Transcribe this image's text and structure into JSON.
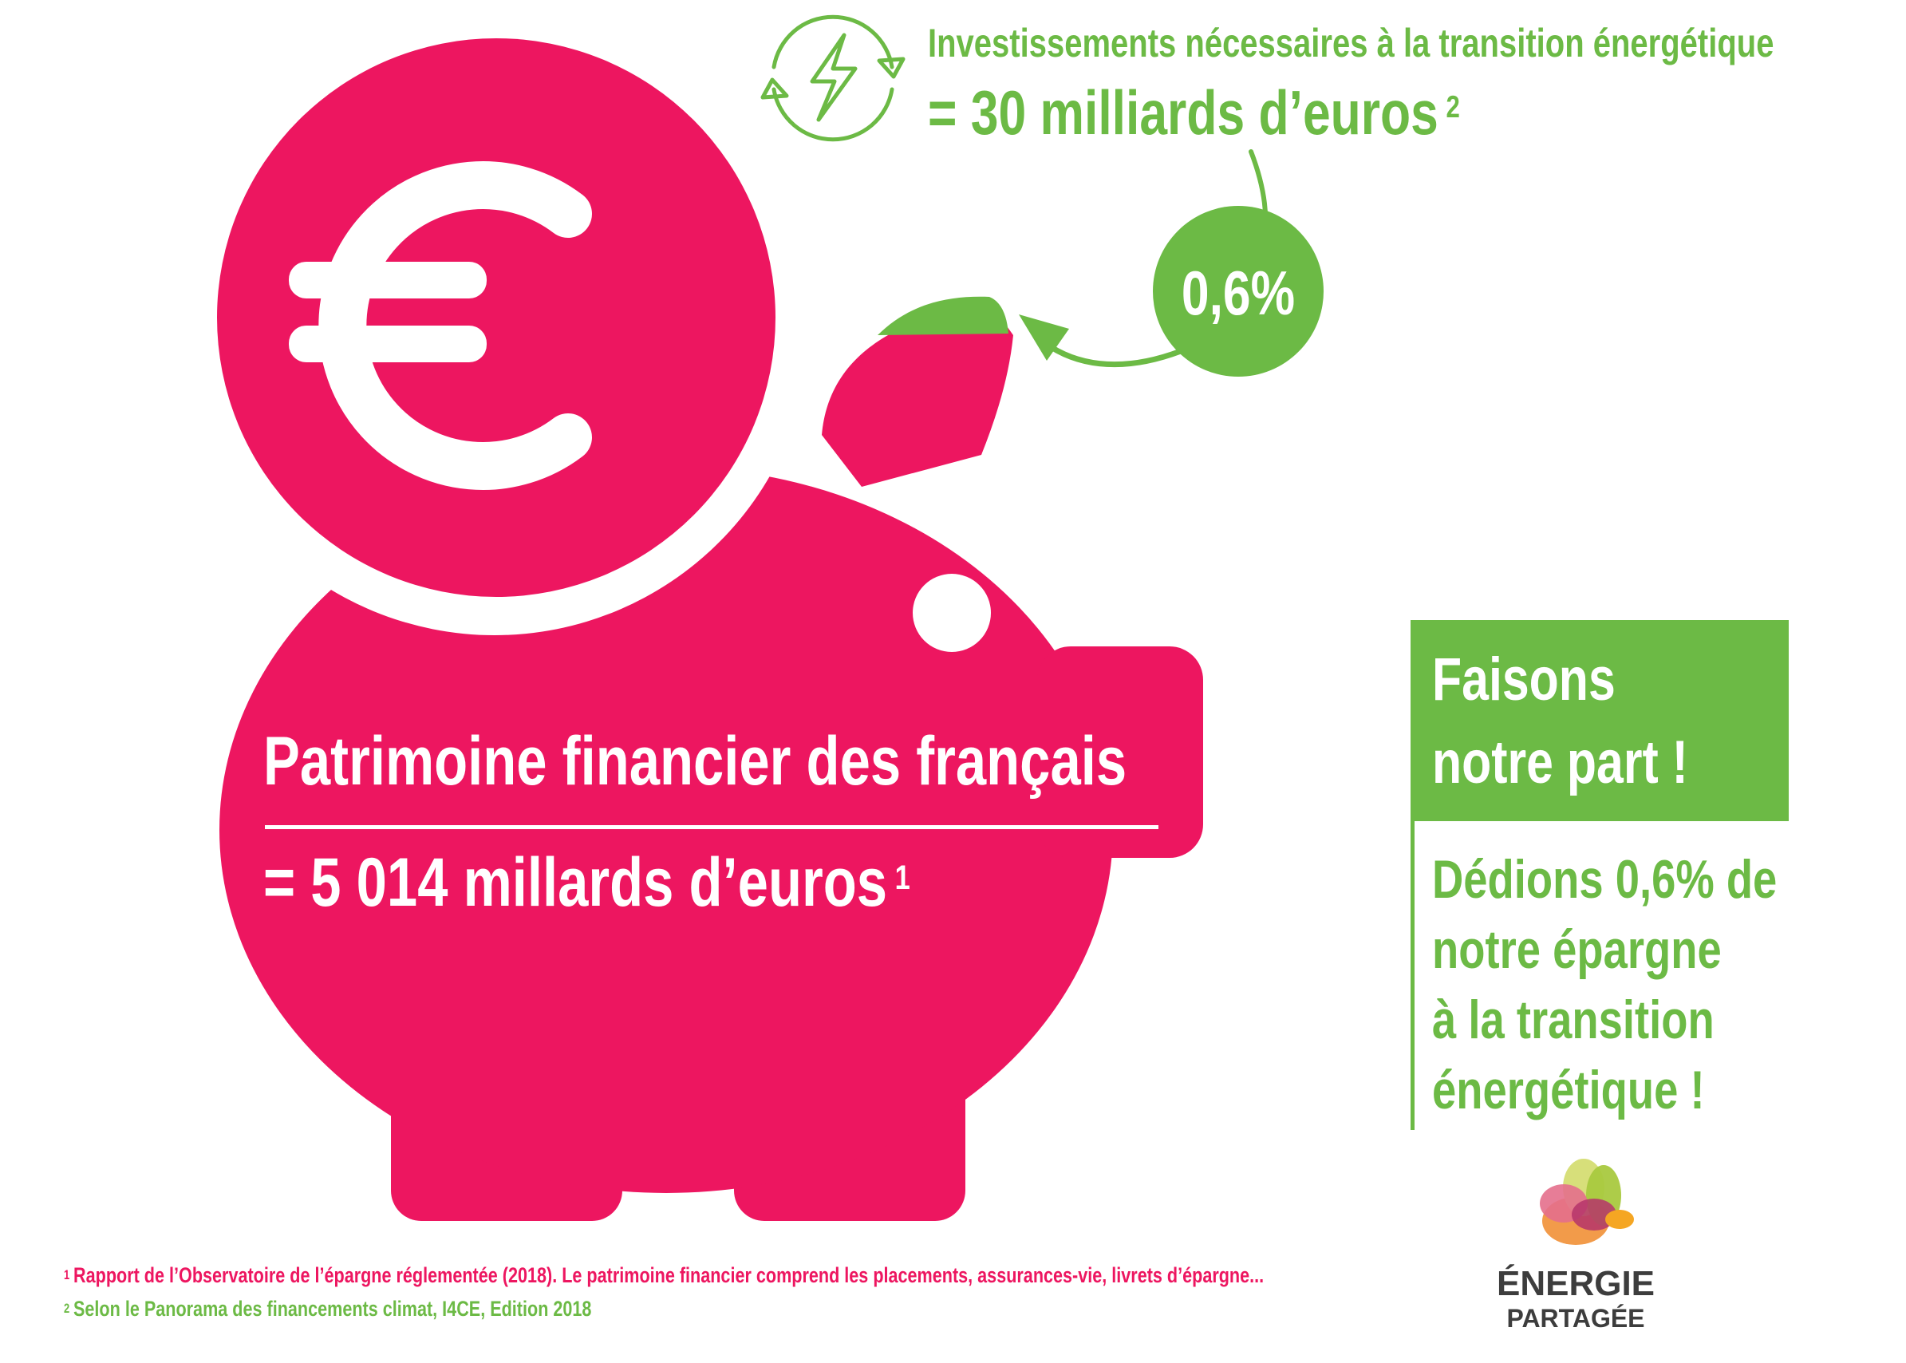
{
  "header": {
    "title": "Investissements nécessaires à la transition énergétique",
    "value": "= 30 milliards d’euros",
    "footnote_ref": "2",
    "icon": "energy-transition-icon"
  },
  "badge": {
    "percent": "0,6%"
  },
  "piggy_bank": {
    "icon": "euro-icon",
    "title": "Patrimoine financier des français",
    "value": "= 5 014 millards d’euros",
    "footnote_ref": "1"
  },
  "call_to_action": {
    "title": "Faisons\nnotre part !",
    "body": "Dédions 0,6% de\nnotre épargne\nà la transition\nénergétique !"
  },
  "footnotes": [
    {
      "ref": "1",
      "text": "Rapport de l’Observatoire de l’épargne réglementée (2018). Le patrimoine financier comprend les placements, assurances-vie, livrets d’épargne..."
    },
    {
      "ref": "2",
      "text": "Selon le Panorama des financements climat, I4CE, Edition 2018"
    }
  ],
  "logo": {
    "line1": "ÉNERGIE",
    "line2": "PARTAGÉE"
  },
  "colors": {
    "pink": "#ed1660",
    "green": "#6cba45",
    "logo_text": "#3d3d3d"
  }
}
